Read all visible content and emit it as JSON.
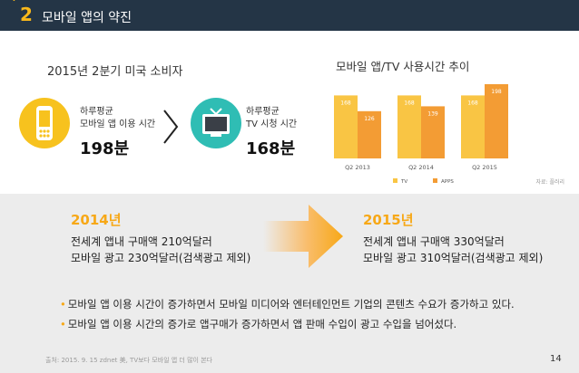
{
  "header": {
    "number": "2",
    "title": "모바일 앱의 약진"
  },
  "left": {
    "title": "2015년 2분기 미국 소비자",
    "mobile": {
      "label_line1": "하루평균",
      "label_line2": "모바일 앱 이용 시간",
      "value": "198분",
      "icon": "mobile-phone-icon"
    },
    "tv": {
      "label_line1": "하루평균",
      "label_line2": "TV 시청 시간",
      "value": "168분",
      "icon": "tv-icon"
    }
  },
  "chart_data": {
    "type": "bar",
    "title": "모바일 앱/TV 사용시간 추이",
    "categories": [
      "Q2 2013",
      "Q2 2014",
      "Q2 2015"
    ],
    "series": [
      {
        "name": "TV",
        "values": [
          168,
          168,
          168
        ],
        "color": "#f9c544"
      },
      {
        "name": "APPS",
        "values": [
          126,
          139,
          198
        ],
        "color": "#f39c34"
      }
    ],
    "ylim": [
      0,
      210
    ],
    "legend_position": "bottom",
    "grid": false,
    "source": "자료: 플러리"
  },
  "compare": {
    "y2014": {
      "year": "2014년",
      "line1": "전세계 앱내 구매액 210억달러",
      "line2": "모바일 광고 230억달러(검색광고 제외)"
    },
    "y2015": {
      "year": "2015년",
      "line1": "전세계 앱내 구매액 330억달러",
      "line2": "모바일 광고 310억달러(검색광고 제외)"
    }
  },
  "bullets": [
    "모바일 앱 이용 시간이 증가하면서 모바일 미디어와 엔터테인먼트 기업의 콘텐츠 수요가 증가하고 있다.",
    "모바일 앱 이용 시간의 증가로 앱구매가 증가하면서 앱 판매 수입이 광고 수입을 넘어섰다."
  ],
  "footer": {
    "source": "출처: 2015. 9. 15 zdnet 美, TV보다 모바일 앱 더 많이 본다",
    "page": "14"
  },
  "colors": {
    "header_bg": "#243546",
    "accent": "#f7a817",
    "panel_bg": "#ececec"
  }
}
